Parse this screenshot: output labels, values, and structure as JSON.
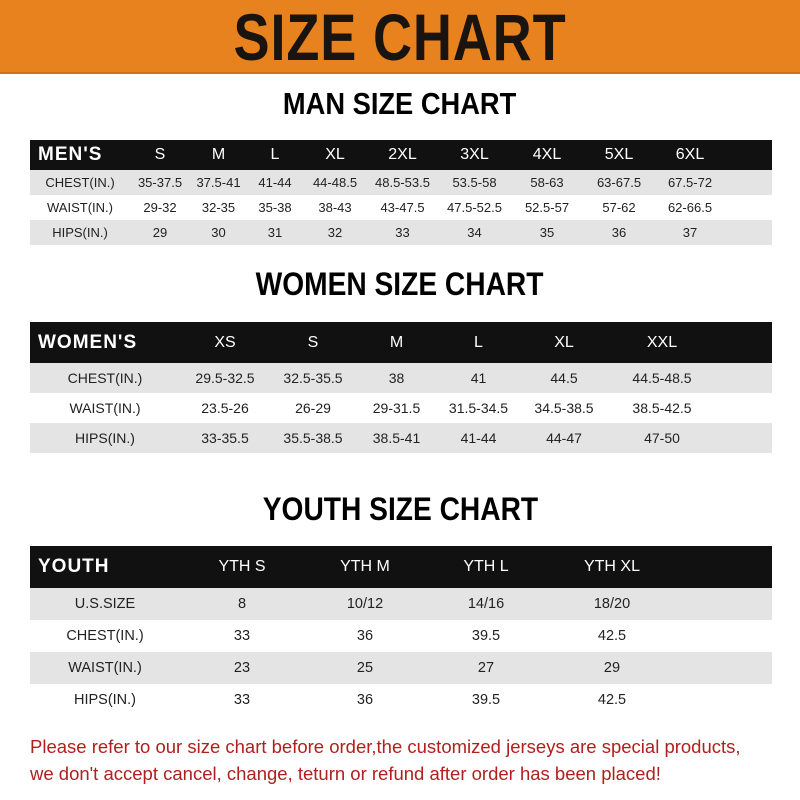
{
  "banner": {
    "title": "SIZE CHART",
    "color": "#e8821e"
  },
  "men": {
    "title": "MAN SIZE CHART",
    "header": [
      "MEN'S",
      "S",
      "M",
      "L",
      "XL",
      "2XL",
      "3XL",
      "4XL",
      "5XL",
      "6XL"
    ],
    "rows": [
      [
        "CHEST(IN.)",
        "35-37.5",
        "37.5-41",
        "41-44",
        "44-48.5",
        "48.5-53.5",
        "53.5-58",
        "58-63",
        "63-67.5",
        "67.5-72"
      ],
      [
        "WAIST(IN.)",
        "29-32",
        "32-35",
        "35-38",
        "38-43",
        "43-47.5",
        "47.5-52.5",
        "52.5-57",
        "57-62",
        "62-66.5"
      ],
      [
        "HIPS(IN.)",
        "29",
        "30",
        "31",
        "32",
        "33",
        "34",
        "35",
        "36",
        "37"
      ]
    ]
  },
  "women": {
    "title": "WOMEN SIZE CHART",
    "header": [
      "WOMEN'S",
      "XS",
      "S",
      "M",
      "L",
      "XL",
      "XXL"
    ],
    "rows": [
      [
        "CHEST(IN.)",
        "29.5-32.5",
        "32.5-35.5",
        "38",
        "41",
        "44.5",
        "44.5-48.5"
      ],
      [
        "WAIST(IN.)",
        "23.5-26",
        "26-29",
        "29-31.5",
        "31.5-34.5",
        "34.5-38.5",
        "38.5-42.5"
      ],
      [
        "HIPS(IN.)",
        "33-35.5",
        "35.5-38.5",
        "38.5-41",
        "41-44",
        "44-47",
        "47-50"
      ]
    ]
  },
  "youth": {
    "title": "YOUTH SIZE CHART",
    "header": [
      "YOUTH",
      "YTH S",
      "YTH M",
      "YTH L",
      "YTH XL"
    ],
    "rows": [
      [
        "U.S.SIZE",
        "8",
        "10/12",
        "14/16",
        "18/20"
      ],
      [
        "CHEST(IN.)",
        "33",
        "36",
        "39.5",
        "42.5"
      ],
      [
        "WAIST(IN.)",
        "23",
        "25",
        "27",
        "29"
      ],
      [
        "HIPS(IN.)",
        "33",
        "36",
        "39.5",
        "42.5"
      ]
    ]
  },
  "note": {
    "line1": "Please refer to our size chart before order,the customized jerseys are special products,",
    "line2": "we don't accept cancel, change, teturn or refund after order has been placed!",
    "color": "#b0201e"
  }
}
